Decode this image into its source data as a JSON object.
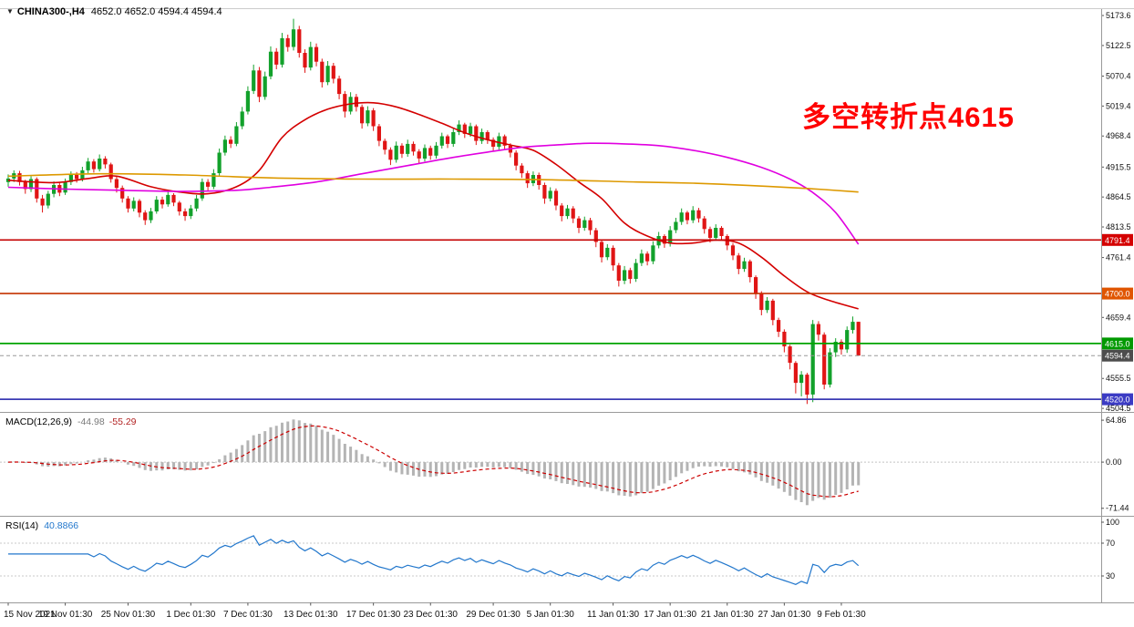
{
  "window": {
    "symbol_period": "CHINA300-,H4",
    "ohlc_display": "4652.0 4652.0 4594.4 4594.4"
  },
  "icons": {
    "symbol_marker": "▼"
  },
  "annotation": {
    "text": "多空转折点4615",
    "color": "#ff0000"
  },
  "chart_data": {
    "type": "candlestick",
    "symbol": "CHINA300-",
    "timeframe": "H4",
    "title": "CHINA300-,H4 4652.0 4652.0 4594.4 4594.4",
    "price_axis": {
      "min": 4500,
      "max": 5184.5,
      "ticks": [
        5173.6,
        5122.5,
        5070.4,
        5019.4,
        4968.4,
        4915.5,
        4864.5,
        4813.5,
        4761.4,
        4659.4,
        4555.5,
        4504.5
      ]
    },
    "levels": [
      {
        "value": 4791.4,
        "label": "4791.4",
        "line_color": "#c40000",
        "badge_color": "#d40000",
        "style": "solid",
        "width": 1.6
      },
      {
        "value": 4700.0,
        "label": "4700.0",
        "line_color": "#c43300",
        "badge_color": "#e05500",
        "style": "solid",
        "width": 1.6
      },
      {
        "value": 4615.0,
        "label": "4615.0",
        "line_color": "#00a400",
        "badge_color": "#009900",
        "style": "solid",
        "width": 1.8
      },
      {
        "value": 4520.0,
        "label": "4520.0",
        "line_color": "#3b3bb4",
        "badge_color": "#3b3bc4",
        "style": "solid",
        "width": 1.8
      },
      {
        "value": 4594.4,
        "label": "4594.4",
        "line_color": "#9a9a9a",
        "badge_color": "#4d4d4d",
        "style": "dashed",
        "width": 1
      }
    ],
    "time_axis": {
      "labels": [
        {
          "idx": 0,
          "text": "15 Nov 2021"
        },
        {
          "idx": 10,
          "text": "19 Nov 01:30"
        },
        {
          "idx": 21,
          "text": "25 Nov 01:30"
        },
        {
          "idx": 32,
          "text": "1 Dec 01:30"
        },
        {
          "idx": 42,
          "text": "7 Dec 01:30"
        },
        {
          "idx": 53,
          "text": "13 Dec 01:30"
        },
        {
          "idx": 64,
          "text": "17 Dec 01:30"
        },
        {
          "idx": 74,
          "text": "23 Dec 01:30"
        },
        {
          "idx": 85,
          "text": "29 Dec 01:30"
        },
        {
          "idx": 95,
          "text": "5 Jan 01:30"
        },
        {
          "idx": 106,
          "text": "11 Jan 01:30"
        },
        {
          "idx": 116,
          "text": "17 Jan 01:30"
        },
        {
          "idx": 126,
          "text": "21 Jan 01:30"
        },
        {
          "idx": 136,
          "text": "27 Jan 01:30"
        },
        {
          "idx": 146,
          "text": "9 Feb 01:30"
        }
      ]
    },
    "candles": [
      [
        4890,
        4903,
        4882,
        4896
      ],
      [
        4896,
        4910,
        4890,
        4905
      ],
      [
        4905,
        4909,
        4884,
        4890
      ],
      [
        4890,
        4894,
        4870,
        4878
      ],
      [
        4878,
        4900,
        4873,
        4895
      ],
      [
        4895,
        4898,
        4855,
        4862
      ],
      [
        4862,
        4868,
        4838,
        4850
      ],
      [
        4850,
        4875,
        4845,
        4870
      ],
      [
        4870,
        4891,
        4864,
        4885
      ],
      [
        4885,
        4890,
        4866,
        4872
      ],
      [
        4872,
        4896,
        4868,
        4890
      ],
      [
        4890,
        4908,
        4885,
        4902
      ],
      [
        4902,
        4907,
        4889,
        4895
      ],
      [
        4895,
        4916,
        4891,
        4910
      ],
      [
        4910,
        4931,
        4905,
        4925
      ],
      [
        4925,
        4929,
        4906,
        4912
      ],
      [
        4912,
        4937,
        4908,
        4930
      ],
      [
        4930,
        4934,
        4913,
        4920
      ],
      [
        4920,
        4923,
        4889,
        4895
      ],
      [
        4895,
        4899,
        4872,
        4880
      ],
      [
        4880,
        4884,
        4855,
        4862
      ],
      [
        4862,
        4866,
        4838,
        4845
      ],
      [
        4845,
        4864,
        4840,
        4858
      ],
      [
        4858,
        4861,
        4830,
        4838
      ],
      [
        4838,
        4842,
        4817,
        4825
      ],
      [
        4825,
        4846,
        4820,
        4840
      ],
      [
        4840,
        4866,
        4836,
        4860
      ],
      [
        4860,
        4865,
        4845,
        4852
      ],
      [
        4852,
        4874,
        4848,
        4868
      ],
      [
        4868,
        4871,
        4849,
        4855
      ],
      [
        4855,
        4858,
        4833,
        4840
      ],
      [
        4840,
        4845,
        4824,
        4832
      ],
      [
        4832,
        4851,
        4827,
        4845
      ],
      [
        4845,
        4868,
        4840,
        4862
      ],
      [
        4862,
        4896,
        4858,
        4890
      ],
      [
        4890,
        4895,
        4875,
        4882
      ],
      [
        4882,
        4912,
        4878,
        4905
      ],
      [
        4905,
        4947,
        4901,
        4940
      ],
      [
        4940,
        4969,
        4935,
        4962
      ],
      [
        4962,
        4968,
        4948,
        4955
      ],
      [
        4955,
        4992,
        4951,
        4985
      ],
      [
        4985,
        5018,
        4980,
        5010
      ],
      [
        5010,
        5053,
        5005,
        5045
      ],
      [
        5045,
        5090,
        5040,
        5080
      ],
      [
        5080,
        5086,
        5026,
        5035
      ],
      [
        5035,
        5078,
        5030,
        5070
      ],
      [
        5070,
        5121,
        5065,
        5112
      ],
      [
        5112,
        5118,
        5082,
        5090
      ],
      [
        5090,
        5144,
        5085,
        5135
      ],
      [
        5135,
        5141,
        5112,
        5120
      ],
      [
        5120,
        5168,
        5114,
        5150
      ],
      [
        5150,
        5156,
        5102,
        5110
      ],
      [
        5110,
        5116,
        5076,
        5085
      ],
      [
        5085,
        5129,
        5080,
        5120
      ],
      [
        5120,
        5126,
        5087,
        5095
      ],
      [
        5095,
        5100,
        5051,
        5060
      ],
      [
        5060,
        5096,
        5055,
        5088
      ],
      [
        5088,
        5093,
        5058,
        5066
      ],
      [
        5066,
        5071,
        5031,
        5040
      ],
      [
        5040,
        5045,
        5000,
        5010
      ],
      [
        5010,
        5043,
        5005,
        5035
      ],
      [
        5035,
        5040,
        5010,
        5018
      ],
      [
        5018,
        5022,
        4981,
        4990
      ],
      [
        4990,
        5019,
        4985,
        5012
      ],
      [
        5012,
        5016,
        4977,
        4985
      ],
      [
        4985,
        4989,
        4951,
        4960
      ],
      [
        4960,
        4964,
        4937,
        4945
      ],
      [
        4945,
        4949,
        4919,
        4928
      ],
      [
        4928,
        4959,
        4923,
        4952
      ],
      [
        4952,
        4956,
        4931,
        4938
      ],
      [
        4938,
        4962,
        4933,
        4955
      ],
      [
        4955,
        4959,
        4935,
        4942
      ],
      [
        4942,
        4946,
        4922,
        4930
      ],
      [
        4930,
        4954,
        4925,
        4948
      ],
      [
        4948,
        4952,
        4928,
        4935
      ],
      [
        4935,
        4958,
        4930,
        4952
      ],
      [
        4952,
        4974,
        4947,
        4968
      ],
      [
        4968,
        4971,
        4948,
        4955
      ],
      [
        4955,
        4981,
        4950,
        4975
      ],
      [
        4975,
        4995,
        4970,
        4988
      ],
      [
        4988,
        4991,
        4965,
        4972
      ],
      [
        4972,
        4991,
        4967,
        4985
      ],
      [
        4985,
        4988,
        4953,
        4960
      ],
      [
        4960,
        4981,
        4955,
        4975
      ],
      [
        4975,
        4978,
        4955,
        4962
      ],
      [
        4962,
        4966,
        4943,
        4950
      ],
      [
        4950,
        4974,
        4945,
        4968
      ],
      [
        4968,
        4971,
        4945,
        4952
      ],
      [
        4952,
        4956,
        4932,
        4940
      ],
      [
        4940,
        4944,
        4910,
        4918
      ],
      [
        4918,
        4922,
        4897,
        4905
      ],
      [
        4905,
        4909,
        4880,
        4888
      ],
      [
        4888,
        4908,
        4883,
        4902
      ],
      [
        4902,
        4906,
        4877,
        4885
      ],
      [
        4885,
        4889,
        4853,
        4862
      ],
      [
        4862,
        4881,
        4857,
        4875
      ],
      [
        4875,
        4879,
        4842,
        4850
      ],
      [
        4850,
        4854,
        4823,
        4832
      ],
      [
        4832,
        4851,
        4827,
        4845
      ],
      [
        4845,
        4849,
        4820,
        4828
      ],
      [
        4828,
        4832,
        4803,
        4812
      ],
      [
        4812,
        4831,
        4807,
        4825
      ],
      [
        4825,
        4829,
        4800,
        4808
      ],
      [
        4808,
        4812,
        4779,
        4788
      ],
      [
        4788,
        4792,
        4753,
        4762
      ],
      [
        4762,
        4784,
        4757,
        4778
      ],
      [
        4778,
        4782,
        4739,
        4748
      ],
      [
        4748,
        4752,
        4712,
        4722
      ],
      [
        4722,
        4747,
        4716,
        4740
      ],
      [
        4740,
        4744,
        4717,
        4725
      ],
      [
        4725,
        4759,
        4720,
        4752
      ],
      [
        4752,
        4775,
        4747,
        4768
      ],
      [
        4768,
        4772,
        4748,
        4755
      ],
      [
        4755,
        4789,
        4750,
        4782
      ],
      [
        4782,
        4805,
        4777,
        4798
      ],
      [
        4798,
        4801,
        4778,
        4785
      ],
      [
        4785,
        4815,
        4780,
        4808
      ],
      [
        4808,
        4829,
        4803,
        4822
      ],
      [
        4822,
        4845,
        4817,
        4838
      ],
      [
        4838,
        4841,
        4818,
        4825
      ],
      [
        4825,
        4849,
        4820,
        4842
      ],
      [
        4842,
        4846,
        4821,
        4828
      ],
      [
        4828,
        4832,
        4802,
        4810
      ],
      [
        4810,
        4814,
        4787,
        4795
      ],
      [
        4795,
        4818,
        4790,
        4812
      ],
      [
        4812,
        4815,
        4791,
        4798
      ],
      [
        4798,
        4801,
        4774,
        4782
      ],
      [
        4782,
        4786,
        4757,
        4765
      ],
      [
        4765,
        4769,
        4733,
        4742
      ],
      [
        4742,
        4761,
        4737,
        4755
      ],
      [
        4755,
        4758,
        4719,
        4728
      ],
      [
        4728,
        4731,
        4691,
        4700
      ],
      [
        4700,
        4704,
        4663,
        4672
      ],
      [
        4672,
        4694,
        4667,
        4688
      ],
      [
        4688,
        4691,
        4646,
        4655
      ],
      [
        4655,
        4659,
        4626,
        4635
      ],
      [
        4635,
        4639,
        4600,
        4610
      ],
      [
        4610,
        4613,
        4571,
        4582
      ],
      [
        4582,
        4585,
        4530,
        4548
      ],
      [
        4548,
        4568,
        4525,
        4562
      ],
      [
        4562,
        4565,
        4512,
        4528
      ],
      [
        4528,
        4655,
        4515,
        4648
      ],
      [
        4648,
        4653,
        4620,
        4630
      ],
      [
        4630,
        4634,
        4537,
        4545
      ],
      [
        4545,
        4607,
        4540,
        4600
      ],
      [
        4600,
        4624,
        4592,
        4618
      ],
      [
        4618,
        4622,
        4596,
        4605
      ],
      [
        4605,
        4644,
        4599,
        4638
      ],
      [
        4638,
        4661,
        4632,
        4652
      ],
      [
        4652,
        4652,
        4594.4,
        4594.4
      ]
    ],
    "ma_lines": [
      {
        "name": "ma-fast-red",
        "color": "#d40000",
        "points": [
          [
            0,
            4893
          ],
          [
            8,
            4889
          ],
          [
            14,
            4896
          ],
          [
            19,
            4900
          ],
          [
            25,
            4882
          ],
          [
            30,
            4873
          ],
          [
            35,
            4870
          ],
          [
            40,
            4882
          ],
          [
            44,
            4910
          ],
          [
            48,
            4966
          ],
          [
            52,
            4996
          ],
          [
            56,
            5014
          ],
          [
            60,
            5023
          ],
          [
            64,
            5025
          ],
          [
            68,
            5018
          ],
          [
            72,
            5005
          ],
          [
            76,
            4990
          ],
          [
            80,
            4974
          ],
          [
            84,
            4962
          ],
          [
            88,
            4953
          ],
          [
            92,
            4944
          ],
          [
            96,
            4920
          ],
          [
            100,
            4890
          ],
          [
            104,
            4862
          ],
          [
            108,
            4820
          ],
          [
            112,
            4798
          ],
          [
            116,
            4786
          ],
          [
            120,
            4786
          ],
          [
            124,
            4791
          ],
          [
            128,
            4786
          ],
          [
            132,
            4762
          ],
          [
            136,
            4730
          ],
          [
            140,
            4703
          ],
          [
            144,
            4688
          ],
          [
            149,
            4674
          ]
        ]
      },
      {
        "name": "ma-mid-magenta",
        "color": "#e000e0",
        "points": [
          [
            0,
            4881
          ],
          [
            10,
            4878
          ],
          [
            20,
            4876
          ],
          [
            30,
            4874
          ],
          [
            40,
            4876
          ],
          [
            46,
            4881
          ],
          [
            54,
            4890
          ],
          [
            62,
            4904
          ],
          [
            70,
            4918
          ],
          [
            78,
            4932
          ],
          [
            84,
            4941
          ],
          [
            90,
            4949
          ],
          [
            96,
            4953
          ],
          [
            102,
            4956
          ],
          [
            108,
            4955
          ],
          [
            114,
            4952
          ],
          [
            120,
            4944
          ],
          [
            126,
            4932
          ],
          [
            132,
            4915
          ],
          [
            137,
            4895
          ],
          [
            141,
            4872
          ],
          [
            145,
            4838
          ],
          [
            149,
            4784
          ]
        ]
      },
      {
        "name": "ma-slow-orange",
        "color": "#dd9900",
        "points": [
          [
            0,
            4900
          ],
          [
            16,
            4904
          ],
          [
            31,
            4902
          ],
          [
            46,
            4897
          ],
          [
            62,
            4895
          ],
          [
            78,
            4895
          ],
          [
            94,
            4894
          ],
          [
            110,
            4890
          ],
          [
            120,
            4888
          ],
          [
            130,
            4884
          ],
          [
            140,
            4879
          ],
          [
            149,
            4873
          ]
        ]
      }
    ],
    "panels": {
      "macd": {
        "name": "MACD(12,26,9)",
        "value_main": "-44.98",
        "value_signal": "-55.29",
        "ticks": [
          64.86,
          0,
          -71.44
        ],
        "tick_labels": [
          "64.86",
          "0.00",
          "-71.44"
        ],
        "histogram_color": "#b4b4b4",
        "signal_color": "#cc0000"
      },
      "rsi": {
        "name": "RSI(14)",
        "value": "40.8866",
        "ticks": [
          100,
          70,
          30
        ],
        "levels": [
          70,
          30
        ],
        "line_color": "#2277cc"
      }
    },
    "colors": {
      "up": "#12a12b",
      "down": "#e01515",
      "background": "#ffffff",
      "axis_text": "#111111"
    }
  }
}
